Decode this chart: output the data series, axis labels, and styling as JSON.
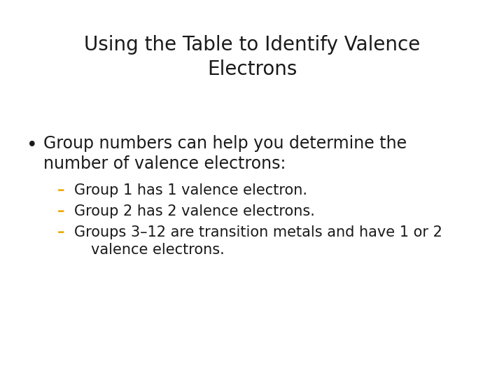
{
  "title_line1": "Using the Table to Identify Valence",
  "title_line2": "Electrons",
  "background_color": "#ffffff",
  "title_color": "#1a1a1a",
  "title_fontsize": 20,
  "bullet_color": "#1a1a1a",
  "bullet_fontsize": 17,
  "sub_bullet_color": "#1a1a1a",
  "sub_bullet_fontsize": 15,
  "dash_color": "#f0a800",
  "bullet_text_line1": "Group numbers can help you determine the",
  "bullet_text_line2": "number of valence electrons:",
  "sub_bullet_1": "Group 1 has 1 valence electron.",
  "sub_bullet_2": "Group 2 has 2 valence electrons.",
  "sub_bullet_3a": "Groups 3–12 are transition metals and have 1 or 2",
  "sub_bullet_3b": "valence electrons."
}
